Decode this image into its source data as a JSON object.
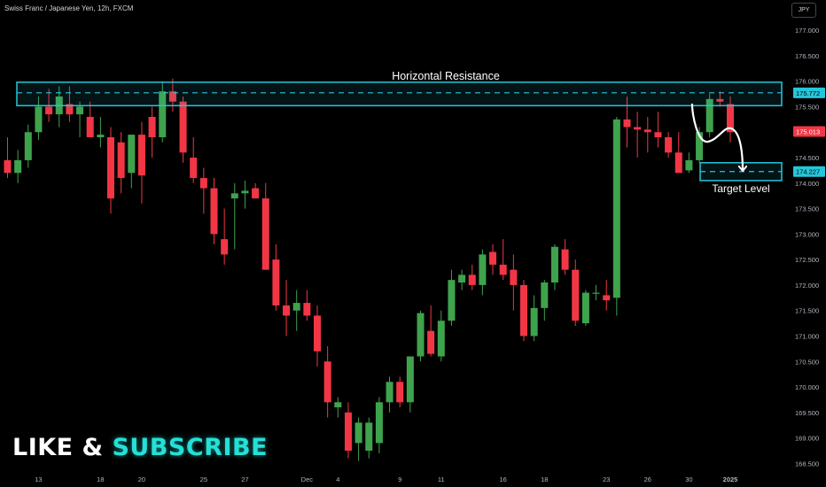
{
  "header": {
    "title": "Swiss Franc / Japanese Yen, 12h, FXCM",
    "currency": "JPY"
  },
  "promo": {
    "part1": "LIKE",
    "part2": "&",
    "part3": "SUBSCRIBE"
  },
  "colors": {
    "up": "#3fa34d",
    "down": "#f23645",
    "accent": "#26c6da",
    "bg": "#000000",
    "axis_text": "#b2b5be",
    "annotation": "#ffffff"
  },
  "chart_data": {
    "type": "candlestick",
    "title": "Swiss Franc / Japanese Yen, 12h, FXCM",
    "ylim": [
      168.35,
      177.35
    ],
    "y_ticks": [
      "168.500",
      "169.000",
      "169.500",
      "170.000",
      "170.500",
      "171.000",
      "171.500",
      "172.000",
      "172.500",
      "173.000",
      "173.500",
      "174.000",
      "174.500",
      "175.000",
      "175.500",
      "176.000",
      "176.500",
      "177.000"
    ],
    "x_ticks": [
      {
        "index": 3,
        "label": "13"
      },
      {
        "index": 9,
        "label": "18"
      },
      {
        "index": 13,
        "label": "20"
      },
      {
        "index": 19,
        "label": "25"
      },
      {
        "index": 23,
        "label": "27"
      },
      {
        "index": 29,
        "label": "Dec"
      },
      {
        "index": 32,
        "label": "4"
      },
      {
        "index": 38,
        "label": "9"
      },
      {
        "index": 42,
        "label": "11"
      },
      {
        "index": 48,
        "label": "16"
      },
      {
        "index": 52,
        "label": "18"
      },
      {
        "index": 58,
        "label": "23"
      },
      {
        "index": 62,
        "label": "26"
      },
      {
        "index": 66,
        "label": "30"
      },
      {
        "index": 70,
        "label": "2025"
      }
    ],
    "candles": [
      [
        174.45,
        174.9,
        174.1,
        174.2
      ],
      [
        174.2,
        174.65,
        174.0,
        174.45
      ],
      [
        174.45,
        175.15,
        174.3,
        175.0
      ],
      [
        175.0,
        175.7,
        174.85,
        175.5
      ],
      [
        175.5,
        175.85,
        175.2,
        175.35
      ],
      [
        175.35,
        175.9,
        175.1,
        175.7
      ],
      [
        175.55,
        175.9,
        175.2,
        175.35
      ],
      [
        175.35,
        175.6,
        174.9,
        175.5
      ],
      [
        175.3,
        175.6,
        174.9,
        174.9
      ],
      [
        174.9,
        175.3,
        174.7,
        174.95
      ],
      [
        174.9,
        175.1,
        173.4,
        173.7
      ],
      [
        174.8,
        175.0,
        173.8,
        174.1
      ],
      [
        174.2,
        174.95,
        173.9,
        174.95
      ],
      [
        174.95,
        175.2,
        173.6,
        174.15
      ],
      [
        175.3,
        175.5,
        174.5,
        174.9
      ],
      [
        174.9,
        176.0,
        174.8,
        175.8
      ],
      [
        175.8,
        176.05,
        175.4,
        175.6
      ],
      [
        175.6,
        175.7,
        174.4,
        174.6
      ],
      [
        174.5,
        174.9,
        174.0,
        174.1
      ],
      [
        174.1,
        174.3,
        173.4,
        173.9
      ],
      [
        173.9,
        174.1,
        172.8,
        173.0
      ],
      [
        172.9,
        173.5,
        172.4,
        172.6
      ],
      [
        173.7,
        174.0,
        172.7,
        173.8
      ],
      [
        173.8,
        174.05,
        173.5,
        173.85
      ],
      [
        173.9,
        174.0,
        173.7,
        173.7
      ],
      [
        173.7,
        174.0,
        172.3,
        172.3
      ],
      [
        172.5,
        172.8,
        171.5,
        171.6
      ],
      [
        171.6,
        172.1,
        171.0,
        171.4
      ],
      [
        171.5,
        171.9,
        171.1,
        171.65
      ],
      [
        171.65,
        171.9,
        171.3,
        171.4
      ],
      [
        171.4,
        171.6,
        170.4,
        170.7
      ],
      [
        170.5,
        170.8,
        169.4,
        169.7
      ],
      [
        169.6,
        169.8,
        169.4,
        169.7
      ],
      [
        169.5,
        169.7,
        168.6,
        168.75
      ],
      [
        168.9,
        169.4,
        168.55,
        169.3
      ],
      [
        168.75,
        169.4,
        168.6,
        169.3
      ],
      [
        168.9,
        169.8,
        168.7,
        169.7
      ],
      [
        169.7,
        170.2,
        169.5,
        170.1
      ],
      [
        170.1,
        170.2,
        169.6,
        169.7
      ],
      [
        169.7,
        170.6,
        169.5,
        170.6
      ],
      [
        170.6,
        171.5,
        170.5,
        171.45
      ],
      [
        171.1,
        171.6,
        170.6,
        170.65
      ],
      [
        170.6,
        171.5,
        170.5,
        171.3
      ],
      [
        171.3,
        172.3,
        171.2,
        172.1
      ],
      [
        172.05,
        172.3,
        171.9,
        172.2
      ],
      [
        172.2,
        172.4,
        171.9,
        172.0
      ],
      [
        172.0,
        172.7,
        171.8,
        172.6
      ],
      [
        172.65,
        172.8,
        172.2,
        172.4
      ],
      [
        172.4,
        172.9,
        172.1,
        172.2
      ],
      [
        172.3,
        172.6,
        171.5,
        172.0
      ],
      [
        172.0,
        172.1,
        170.9,
        171.0
      ],
      [
        171.0,
        171.8,
        170.9,
        171.55
      ],
      [
        171.55,
        172.1,
        171.3,
        172.05
      ],
      [
        172.05,
        172.8,
        171.9,
        172.75
      ],
      [
        172.7,
        172.9,
        172.2,
        172.3
      ],
      [
        172.3,
        172.5,
        171.2,
        171.3
      ],
      [
        171.25,
        171.9,
        171.2,
        171.85
      ],
      [
        171.85,
        172.0,
        171.7,
        171.85
      ],
      [
        171.8,
        172.1,
        171.5,
        171.7
      ],
      [
        171.75,
        175.3,
        171.4,
        175.25
      ],
      [
        175.25,
        175.7,
        174.7,
        175.1
      ],
      [
        175.1,
        175.4,
        174.5,
        175.05
      ],
      [
        175.05,
        175.3,
        174.6,
        175.0
      ],
      [
        175.0,
        175.4,
        174.7,
        174.9
      ],
      [
        174.9,
        175.0,
        174.5,
        174.6
      ],
      [
        174.6,
        175.0,
        174.2,
        174.2
      ],
      [
        174.25,
        174.6,
        174.2,
        174.45
      ],
      [
        174.45,
        175.1,
        174.4,
        175.0
      ],
      [
        175.0,
        175.75,
        174.9,
        175.65
      ],
      [
        175.65,
        175.8,
        175.5,
        175.6
      ],
      [
        175.55,
        175.7,
        174.8,
        175.0
      ]
    ],
    "resistance_zone": {
      "label": "Horizontal Resistance",
      "low": 175.52,
      "high": 175.98,
      "level": 175.772
    },
    "target_zone": {
      "label": "Target Level",
      "low": 174.05,
      "high": 174.4,
      "level": 174.227
    },
    "price_labels": {
      "resistance": "175.772",
      "last": "175.013",
      "target": "174.227"
    },
    "last_price": 175.013
  }
}
